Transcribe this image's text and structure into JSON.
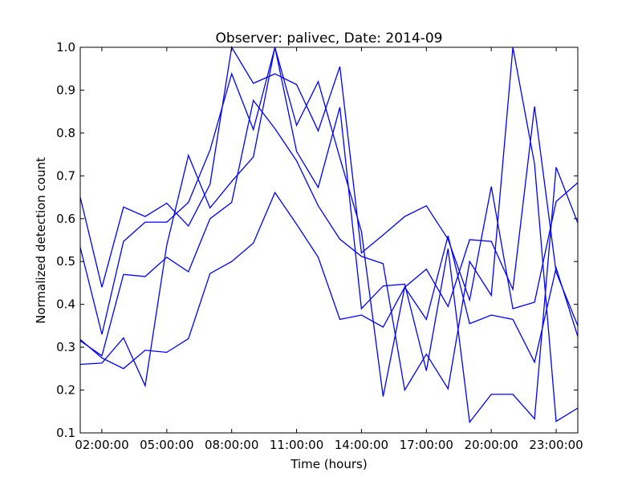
{
  "chart_data": {
    "type": "line",
    "title": "Observer: palivec, Date: 2014-09",
    "xlabel": "Time (hours)",
    "ylabel": "Normalized detection count",
    "xlim": [
      1,
      24
    ],
    "ylim": [
      0.1,
      1.0
    ],
    "x_ticks": [
      2,
      5,
      8,
      11,
      14,
      17,
      20,
      23
    ],
    "x_tick_labels": [
      "02:00:00",
      "05:00:00",
      "08:00:00",
      "11:00:00",
      "14:00:00",
      "17:00:00",
      "20:00:00",
      "23:00:00"
    ],
    "y_ticks": [
      0.1,
      0.2,
      0.3,
      0.4,
      0.5,
      0.6,
      0.7,
      0.8,
      0.9,
      1.0
    ],
    "y_tick_labels": [
      "0.1",
      "0.2",
      "0.3",
      "0.4",
      "0.5",
      "0.6",
      "0.7",
      "0.8",
      "0.9",
      "1.0"
    ],
    "grid": false,
    "line_color": "#0000ff",
    "x": [
      1,
      2,
      3,
      4,
      5,
      6,
      7,
      8,
      9,
      10,
      11,
      12,
      13,
      14,
      15,
      16,
      17,
      18,
      19,
      20,
      21,
      22,
      23,
      24
    ],
    "series": [
      {
        "values": [
          0.65,
          0.44,
          0.627,
          0.605,
          0.636,
          0.583,
          0.68,
          1.0,
          0.916,
          0.938,
          0.913,
          0.805,
          0.955,
          0.52,
          0.562,
          0.605,
          0.63,
          0.552,
          0.41,
          0.675,
          0.39,
          0.405,
          0.64,
          0.684
        ]
      },
      {
        "values": [
          0.533,
          0.33,
          0.547,
          0.592,
          0.592,
          0.638,
          0.76,
          0.938,
          0.808,
          1.0,
          0.757,
          0.673,
          0.86,
          0.39,
          0.443,
          0.447,
          0.245,
          0.53,
          0.125,
          0.19,
          0.19,
          0.133,
          0.72,
          0.59
        ]
      },
      {
        "values": [
          0.315,
          0.28,
          0.47,
          0.465,
          0.51,
          0.476,
          0.6,
          0.638,
          0.876,
          0.81,
          0.735,
          0.63,
          0.552,
          0.512,
          0.495,
          0.2,
          0.284,
          0.203,
          0.5,
          0.421,
          1.0,
          0.728,
          0.127,
          0.158
        ]
      },
      {
        "values": [
          0.26,
          0.263,
          0.322,
          0.21,
          0.538,
          0.748,
          0.625,
          0.687,
          0.744,
          1.0,
          0.818,
          0.92,
          0.742,
          0.57,
          0.185,
          0.44,
          0.365,
          0.56,
          0.355,
          0.375,
          0.365,
          0.265,
          0.485,
          0.325
        ]
      },
      {
        "values": [
          0.318,
          0.275,
          0.25,
          0.293,
          0.288,
          0.32,
          0.472,
          0.5,
          0.543,
          0.661,
          0.587,
          0.51,
          0.365,
          0.375,
          0.347,
          0.44,
          0.482,
          0.395,
          0.551,
          0.547,
          0.435,
          0.862,
          0.475,
          0.35
        ]
      }
    ]
  }
}
